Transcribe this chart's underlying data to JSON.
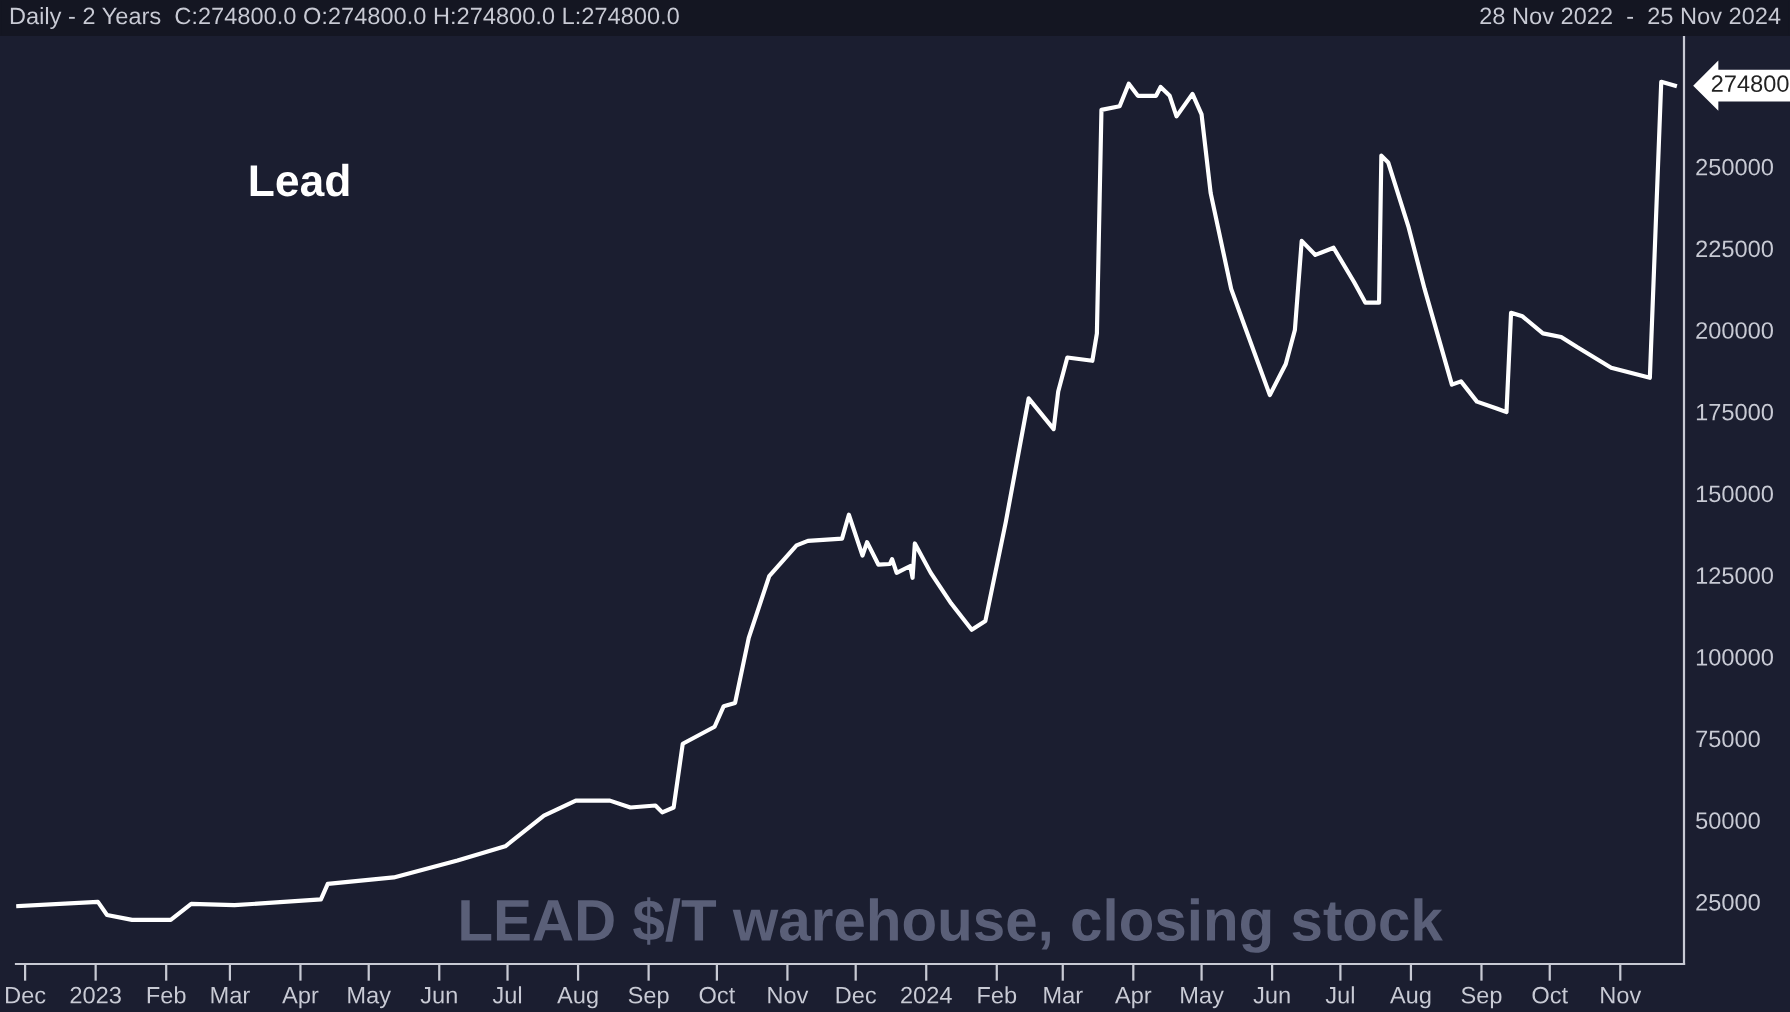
{
  "chart_data": {
    "type": "line",
    "title": "Lead",
    "subtitle": "LEAD $/T warehouse, closing stock",
    "annotations": [
      "Daily - 2 Years  C:274800.0 O:274800.0 H:274800.0 L:274800.0",
      "28 Nov 2022  -  25 Nov 2024",
      {
        "text": "274800",
        "x": "2024-11-25",
        "y": 274800
      }
    ],
    "series": [
      {
        "color": "#ffffff",
        "x": [
          "2022-11-28",
          "2023-01-02",
          "2023-01-06",
          "2023-01-17",
          "2023-02-03",
          "2023-02-12",
          "2023-03-03",
          "2023-04-10",
          "2023-04-13",
          "2023-05-12",
          "2023-06-09",
          "2023-06-30",
          "2023-07-17",
          "2023-07-31",
          "2023-08-15",
          "2023-08-24",
          "2023-09-04",
          "2023-09-07",
          "2023-09-12",
          "2023-09-16",
          "2023-09-30",
          "2023-10-04",
          "2023-10-09",
          "2023-10-15",
          "2023-10-24",
          "2023-11-05",
          "2023-11-10",
          "2023-11-25",
          "2023-11-28",
          "2023-12-04",
          "2023-12-06",
          "2023-12-11",
          "2023-12-16",
          "2023-12-17",
          "2023-12-19",
          "2023-12-25",
          "2023-12-26",
          "2023-12-27",
          "2024-01-03",
          "2024-01-12",
          "2024-01-21",
          "2024-01-27",
          "2024-02-05",
          "2024-02-15",
          "2024-02-26",
          "2024-02-28",
          "2024-03-03",
          "2024-03-14",
          "2024-03-16",
          "2024-03-18",
          "2024-03-26",
          "2024-03-30",
          "2024-04-03",
          "2024-04-11",
          "2024-04-13",
          "2024-04-17",
          "2024-04-20",
          "2024-04-27",
          "2024-05-01",
          "2024-05-05",
          "2024-05-14",
          "2024-05-20",
          "2024-05-31",
          "2024-06-07",
          "2024-06-11",
          "2024-06-14",
          "2024-06-20",
          "2024-06-28",
          "2024-07-07",
          "2024-07-12",
          "2024-07-18",
          "2024-07-19",
          "2024-07-22",
          "2024-07-31",
          "2024-08-07",
          "2024-08-19",
          "2024-08-23",
          "2024-08-30",
          "2024-09-08",
          "2024-09-12",
          "2024-09-14",
          "2024-09-19",
          "2024-09-28",
          "2024-10-06",
          "2024-10-13",
          "2024-10-28",
          "2024-11-14",
          "2024-11-19",
          "2024-11-25"
        ],
        "values": [
          23700,
          25000,
          21000,
          19500,
          19500,
          24400,
          24000,
          25800,
          30500,
          32500,
          37700,
          42000,
          51400,
          56000,
          56000,
          53900,
          54500,
          52400,
          53900,
          73400,
          78600,
          84900,
          85900,
          105800,
          124700,
          134100,
          135500,
          136200,
          143500,
          131000,
          135100,
          128200,
          128400,
          129900,
          125700,
          127800,
          124200,
          134700,
          125700,
          116300,
          108300,
          111000,
          141400,
          179100,
          169700,
          181200,
          191600,
          190600,
          199000,
          267400,
          268500,
          275400,
          271700,
          271700,
          274400,
          271700,
          265400,
          272300,
          266000,
          241900,
          212600,
          201100,
          180100,
          189600,
          200000,
          227300,
          223000,
          225200,
          214700,
          208400,
          208400,
          253400,
          251300,
          231400,
          212600,
          183300,
          184300,
          178100,
          175900,
          174900,
          205300,
          204200,
          199000,
          197900,
          194800,
          188500,
          185400,
          276000,
          274800
        ]
      }
    ],
    "xlim": [
      "2022-11-27",
      "2024-11-29"
    ],
    "xticks": [
      {
        "value": "2022-12-01",
        "label": "Dec"
      },
      {
        "value": "2023-01-01",
        "label": "2023"
      },
      {
        "value": "2023-02-01",
        "label": "Feb"
      },
      {
        "value": "2023-03-01",
        "label": "Mar"
      },
      {
        "value": "2023-04-01",
        "label": "Apr"
      },
      {
        "value": "2023-05-01",
        "label": "May"
      },
      {
        "value": "2023-06-01",
        "label": "Jun"
      },
      {
        "value": "2023-07-01",
        "label": "Jul"
      },
      {
        "value": "2023-08-01",
        "label": "Aug"
      },
      {
        "value": "2023-09-01",
        "label": "Sep"
      },
      {
        "value": "2023-10-01",
        "label": "Oct"
      },
      {
        "value": "2023-11-01",
        "label": "Nov"
      },
      {
        "value": "2023-12-01",
        "label": "Dec"
      },
      {
        "value": "2024-01-01",
        "label": "2024"
      },
      {
        "value": "2024-02-01",
        "label": "Feb"
      },
      {
        "value": "2024-03-01",
        "label": "Mar"
      },
      {
        "value": "2024-04-01",
        "label": "Apr"
      },
      {
        "value": "2024-05-01",
        "label": "May"
      },
      {
        "value": "2024-06-01",
        "label": "Jun"
      },
      {
        "value": "2024-07-01",
        "label": "Jul"
      },
      {
        "value": "2024-08-01",
        "label": "Aug"
      },
      {
        "value": "2024-09-01",
        "label": "Sep"
      },
      {
        "value": "2024-10-01",
        "label": "Oct"
      },
      {
        "value": "2024-11-01",
        "label": "Nov"
      }
    ],
    "ylim": [
      6000,
      290000
    ],
    "yticks": [
      25000,
      50000,
      75000,
      100000,
      125000,
      150000,
      175000,
      200000,
      225000,
      250000
    ],
    "grid": false,
    "legend": false
  }
}
